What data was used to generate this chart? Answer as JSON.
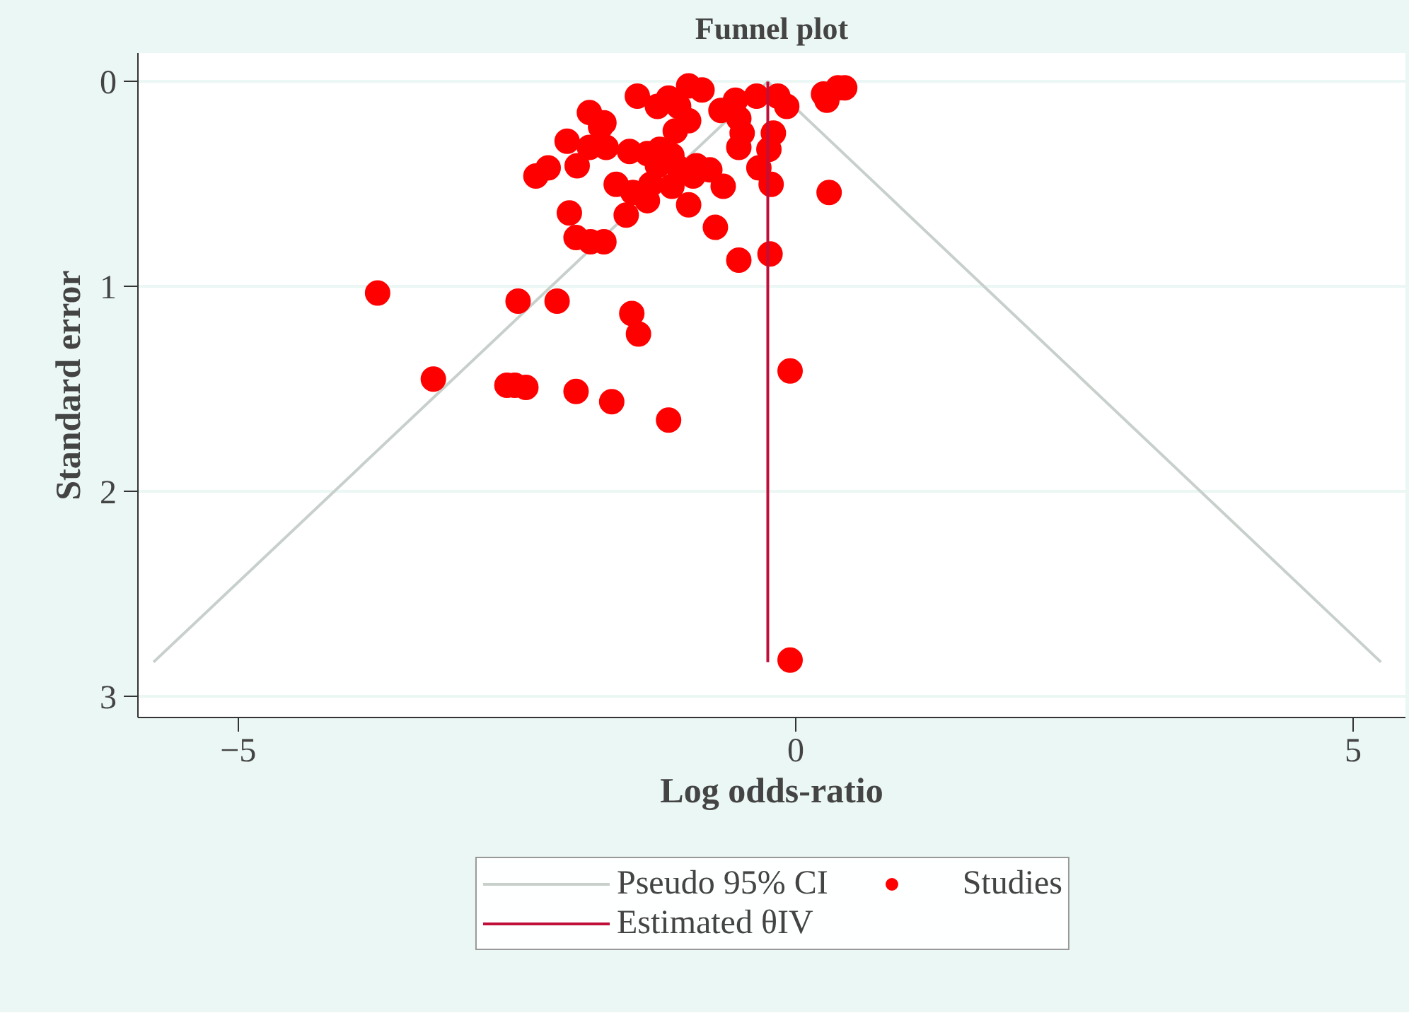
{
  "chart_data": {
    "type": "scatter",
    "title": "Funnel plot",
    "xlabel": "Log odds-ratio",
    "ylabel": "Standard error",
    "xlim": [
      -5.9,
      5.47
    ],
    "ylim": [
      3.1,
      -0.14
    ],
    "xticks": [
      -5,
      0,
      5
    ],
    "yticks": [
      0,
      1,
      2,
      3
    ],
    "grid": "y",
    "legend": "bottom",
    "series": [
      {
        "name": "Pseudo 95% CI",
        "type": "line",
        "color": "#c8d0cc",
        "x": [
          -5.76,
          -0.25,
          5.25
        ],
        "values": [
          2.83,
          0,
          2.83
        ]
      },
      {
        "name": "Studies",
        "marker": "circle",
        "color": "#ff0000",
        "x": [
          -1.85,
          -1.75,
          -2.05,
          -1.85,
          -1.7,
          -2.22,
          -2.33,
          -1.96,
          -1.61,
          -2.03,
          -1.97,
          -1.84,
          -1.72,
          -0.96,
          -0.84,
          -1.42,
          -1.14,
          -1.24,
          -1.05,
          -0.54,
          -0.67,
          -0.35,
          -0.16,
          -0.08,
          0.38,
          0.28,
          -0.96,
          -1.08,
          -0.51,
          -0.48,
          -0.2,
          -0.51,
          -0.24,
          -1.72,
          -1.49,
          -1.33,
          -1.22,
          -1.11,
          -1.24,
          -1.05,
          -0.89,
          -0.77,
          -0.92,
          -0.65,
          -1.11,
          -1.46,
          -1.3,
          -1.33,
          -1.52,
          -0.96,
          -0.33,
          -0.22,
          0.3,
          -0.72,
          -0.51,
          -0.23,
          -3.75,
          -2.49,
          -2.14,
          -1.47,
          -1.41,
          -0.05,
          -3.25,
          -2.59,
          -2.52,
          -2.42,
          -1.97,
          -1.65,
          -1.14,
          -0.05,
          0.44,
          0.25
        ],
        "values": [
          0.15,
          0.22,
          0.29,
          0.32,
          0.32,
          0.42,
          0.46,
          0.41,
          0.5,
          0.64,
          0.76,
          0.78,
          0.78,
          0.02,
          0.04,
          0.07,
          0.08,
          0.12,
          0.12,
          0.09,
          0.14,
          0.07,
          0.07,
          0.12,
          0.03,
          0.09,
          0.19,
          0.24,
          0.18,
          0.25,
          0.25,
          0.32,
          0.33,
          0.2,
          0.34,
          0.35,
          0.33,
          0.36,
          0.41,
          0.42,
          0.41,
          0.43,
          0.46,
          0.51,
          0.51,
          0.54,
          0.5,
          0.58,
          0.65,
          0.6,
          0.42,
          0.5,
          0.54,
          0.71,
          0.87,
          0.84,
          1.03,
          1.07,
          1.07,
          1.13,
          1.23,
          1.41,
          1.45,
          1.48,
          1.48,
          1.49,
          1.51,
          1.56,
          1.65,
          2.82,
          0.03,
          0.06
        ]
      },
      {
        "name": "Estimated θIV",
        "type": "line",
        "color": "#c0103a",
        "x": [
          -0.25,
          -0.25
        ],
        "values": [
          0,
          2.83
        ]
      }
    ]
  }
}
